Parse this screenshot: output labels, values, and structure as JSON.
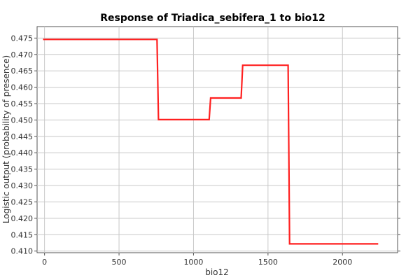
{
  "chart_data": {
    "type": "line",
    "title": "Response of Triadica_sebifera_1 to bio12",
    "xlabel": "bio12",
    "ylabel": "Logistic output (probability of presence)",
    "xlim": [
      -50,
      2370
    ],
    "ylim": [
      0.4095,
      0.4785
    ],
    "xticks": [
      0,
      500,
      1000,
      1500,
      2000
    ],
    "yticks": [
      0.41,
      0.415,
      0.42,
      0.425,
      0.43,
      0.435,
      0.44,
      0.445,
      0.45,
      0.455,
      0.46,
      0.465,
      0.47,
      0.475
    ],
    "xtick_labels": [
      "0",
      "500",
      "1000",
      "1500",
      "2000"
    ],
    "ytick_labels": [
      "0.410",
      "0.415",
      "0.420",
      "0.425",
      "0.430",
      "0.435",
      "0.440",
      "0.445",
      "0.450",
      "0.455",
      "0.460",
      "0.465",
      "0.470",
      "0.475"
    ],
    "grid": true,
    "series": [
      {
        "color": "#ff2020",
        "x": [
          -10,
          755,
          765,
          1105,
          1115,
          1320,
          1330,
          1635,
          1645,
          2240
        ],
        "y": [
          0.4746,
          0.4746,
          0.4501,
          0.4501,
          0.4567,
          0.4567,
          0.4667,
          0.4667,
          0.4122,
          0.4122
        ]
      }
    ]
  }
}
